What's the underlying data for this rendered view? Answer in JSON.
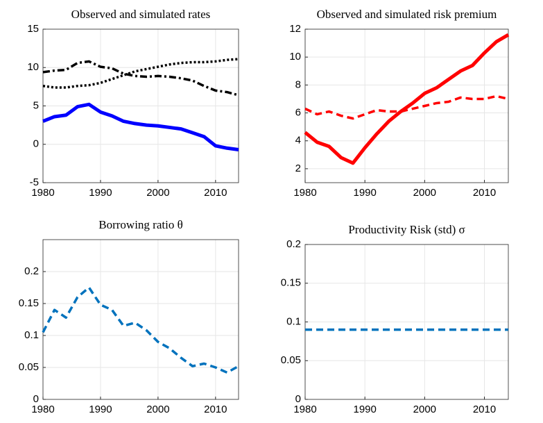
{
  "chart_data": [
    {
      "type": "line",
      "title": "Observed and simulated rates",
      "x": [
        1980,
        1982,
        1984,
        1986,
        1988,
        1990,
        1992,
        1994,
        1996,
        1998,
        2000,
        2002,
        2004,
        2006,
        2008,
        2010,
        2012,
        2014
      ],
      "series": [
        {
          "color": "#0000ff",
          "dash": "solid",
          "values": [
            3.0,
            3.6,
            3.8,
            4.9,
            5.2,
            4.2,
            3.7,
            3.0,
            2.7,
            2.5,
            2.4,
            2.2,
            2.0,
            1.5,
            1.0,
            -0.2,
            -0.5,
            -0.7
          ]
        },
        {
          "color": "#000000",
          "dash": "dotted",
          "values": [
            7.6,
            7.4,
            7.4,
            7.6,
            7.7,
            8.0,
            8.5,
            9.0,
            9.5,
            9.8,
            10.1,
            10.4,
            10.6,
            10.7,
            10.7,
            10.8,
            11.0,
            11.1
          ]
        },
        {
          "color": "#000000",
          "dash": "dashdot",
          "values": [
            9.4,
            9.6,
            9.7,
            10.6,
            10.8,
            10.1,
            9.9,
            9.2,
            8.9,
            8.8,
            8.9,
            8.8,
            8.6,
            8.3,
            7.6,
            7.0,
            6.8,
            6.4
          ]
        }
      ],
      "xlim": [
        1980,
        2014
      ],
      "xticks": [
        1980,
        1990,
        2000,
        2010
      ],
      "ylim": [
        -5,
        15
      ],
      "yticks": [
        -5,
        0,
        5,
        10,
        15
      ],
      "grid": true
    },
    {
      "type": "line",
      "title": "Observed and simulated risk premium",
      "x": [
        1980,
        1982,
        1984,
        1986,
        1988,
        1990,
        1992,
        1994,
        1996,
        1998,
        2000,
        2002,
        2004,
        2006,
        2008,
        2010,
        2012,
        2014
      ],
      "series": [
        {
          "color": "#ff0000",
          "dash": "solid",
          "values": [
            4.6,
            3.9,
            3.6,
            2.8,
            2.4,
            3.5,
            4.5,
            5.4,
            6.1,
            6.7,
            7.4,
            7.8,
            8.4,
            9.0,
            9.4,
            10.3,
            11.1,
            11.6
          ]
        },
        {
          "color": "#ff0000",
          "dash": "dashed",
          "values": [
            6.3,
            5.9,
            6.1,
            5.8,
            5.6,
            5.9,
            6.2,
            6.1,
            6.1,
            6.3,
            6.5,
            6.7,
            6.8,
            7.1,
            7.0,
            7.0,
            7.2,
            7.0
          ]
        }
      ],
      "xlim": [
        1980,
        2014
      ],
      "xticks": [
        1980,
        1990,
        2000,
        2010
      ],
      "ylim": [
        1,
        12
      ],
      "yticks": [
        2,
        4,
        6,
        8,
        10,
        12
      ],
      "grid": true
    },
    {
      "type": "line",
      "title": "Borrowing ratio θ",
      "x": [
        1980,
        1982,
        1984,
        1986,
        1988,
        1990,
        1992,
        1994,
        1996,
        1998,
        2000,
        2002,
        2004,
        2006,
        2008,
        2010,
        2012,
        2014
      ],
      "series": [
        {
          "color": "#0072bd",
          "dash": "dashed",
          "values": [
            0.105,
            0.14,
            0.128,
            0.16,
            0.175,
            0.148,
            0.14,
            0.115,
            0.12,
            0.108,
            0.09,
            0.08,
            0.065,
            0.052,
            0.056,
            0.05,
            0.042,
            0.052
          ]
        }
      ],
      "xlim": [
        1980,
        2014
      ],
      "xticks": [
        1980,
        1990,
        2000,
        2010
      ],
      "ylim": [
        0,
        0.25
      ],
      "yticks": [
        0,
        0.05,
        0.1,
        0.15,
        0.2
      ],
      "grid": true
    },
    {
      "type": "line",
      "title": "Productivity Risk (std) σ",
      "x": [
        1980,
        2014
      ],
      "series": [
        {
          "color": "#0072bd",
          "dash": "dashed",
          "values": [
            0.09,
            0.09
          ]
        }
      ],
      "xlim": [
        1980,
        2014
      ],
      "xticks": [
        1980,
        1990,
        2000,
        2010
      ],
      "ylim": [
        0,
        0.2
      ],
      "yticks": [
        0,
        0.05,
        0.1,
        0.15,
        0.2
      ],
      "grid": true
    }
  ]
}
